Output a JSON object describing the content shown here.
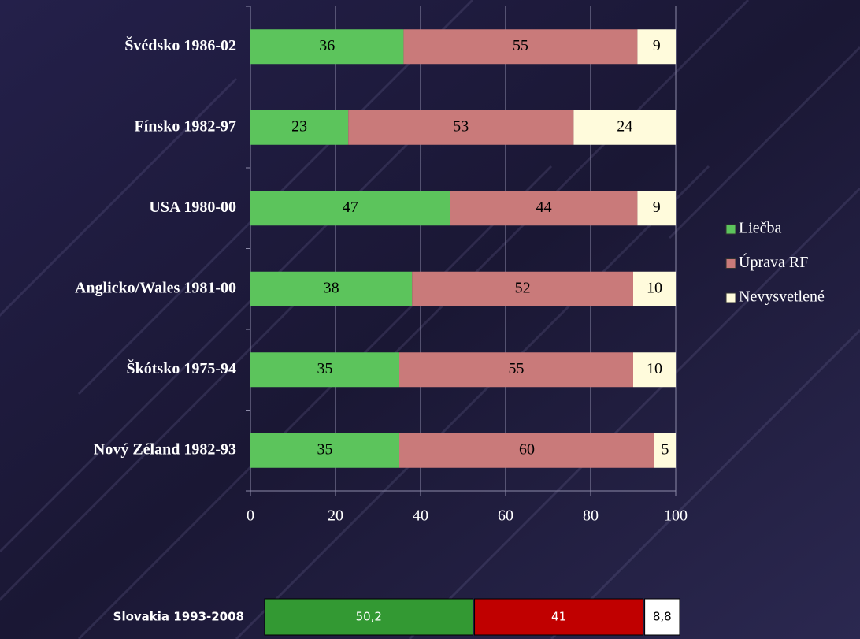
{
  "chart_data": [
    {
      "type": "stacked-bar",
      "orientation": "horizontal",
      "categories": [
        "Švédsko 1986-02",
        "Fínsko 1982-97",
        "USA 1980-00",
        "Anglicko/Wales 1981-00",
        "Škótsko 1975-94",
        "Nový Zéland 1982-93"
      ],
      "series": [
        {
          "name": "Liečba",
          "color": "#5cc45c",
          "values": [
            36,
            23,
            47,
            38,
            35,
            35
          ]
        },
        {
          "name": "Úprava RF",
          "color": "#c97a7a",
          "values": [
            55,
            53,
            44,
            52,
            55,
            60
          ]
        },
        {
          "name": "Nevysvetlené",
          "color": "#fffbdc",
          "values": [
            9,
            24,
            9,
            10,
            10,
            5
          ]
        }
      ],
      "xlim": [
        0,
        100
      ],
      "xticks": [
        0,
        20,
        40,
        60,
        80,
        100
      ],
      "grid": true,
      "legend": "right"
    },
    {
      "type": "stacked-bar",
      "orientation": "horizontal",
      "categories": [
        "Slovakia 1993-2008"
      ],
      "series": [
        {
          "color": "#339933",
          "values": [
            50.2
          ],
          "value_labels": [
            "50,2"
          ]
        },
        {
          "color": "#c00000",
          "values": [
            41
          ]
        },
        {
          "color": "#ffffff",
          "values": [
            8.8
          ],
          "value_labels": [
            "8,8"
          ]
        }
      ]
    }
  ]
}
